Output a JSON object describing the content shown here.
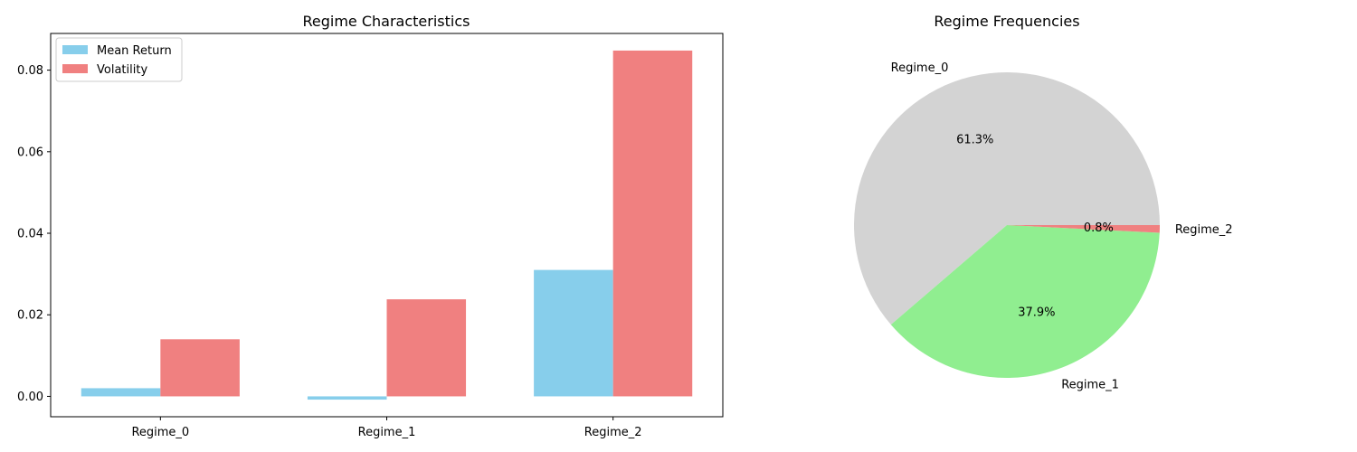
{
  "chart_data": [
    {
      "type": "bar",
      "title": "Regime Characteristics",
      "categories": [
        "Regime_0",
        "Regime_1",
        "Regime_2"
      ],
      "series": [
        {
          "name": "Mean Return",
          "values": [
            0.002,
            -0.0008,
            0.031
          ],
          "color": "#87ceeb"
        },
        {
          "name": "Volatility",
          "values": [
            0.014,
            0.0238,
            0.0848
          ],
          "color": "#f08080"
        }
      ],
      "ylim": [
        -0.005,
        0.089
      ],
      "yticks": [
        "0.00",
        "0.02",
        "0.04",
        "0.06",
        "0.08"
      ],
      "legend_position": "top-left",
      "grid": false
    },
    {
      "type": "pie",
      "title": "Regime Frequencies",
      "labels": [
        "Regime_0",
        "Regime_1",
        "Regime_2"
      ],
      "values": [
        61.3,
        37.9,
        0.8
      ],
      "pct_labels": [
        "61.3%",
        "37.9%",
        "0.8%"
      ],
      "colors": [
        "#d3d3d3",
        "#90ee90",
        "#f08080"
      ]
    }
  ]
}
